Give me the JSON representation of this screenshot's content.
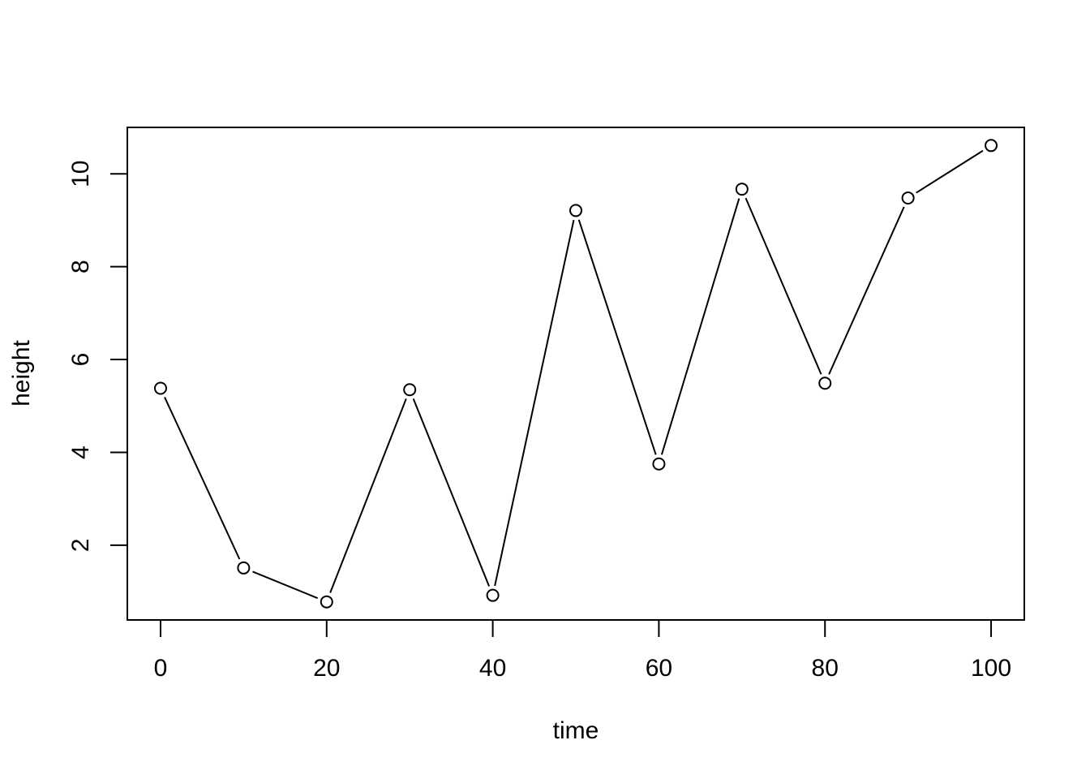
{
  "chart_data": {
    "type": "line",
    "title": "",
    "xlabel": "time",
    "ylabel": "height",
    "x": [
      0,
      10,
      20,
      30,
      40,
      50,
      60,
      70,
      80,
      90,
      100
    ],
    "series": [
      {
        "values": [
          5.38,
          1.51,
          0.78,
          5.35,
          0.92,
          9.21,
          3.75,
          9.67,
          5.49,
          9.48,
          10.61
        ]
      }
    ],
    "xlim": [
      -4,
      104
    ],
    "ylim": [
      0.39,
      11.0
    ],
    "xticks": [
      0,
      20,
      40,
      60,
      80,
      100
    ],
    "xtick_labels": [
      "0",
      "20",
      "40",
      "60",
      "80",
      "100"
    ],
    "yticks": [
      2,
      4,
      6,
      8,
      10
    ],
    "ytick_labels": [
      "2",
      "4",
      "6",
      "8",
      "10"
    ],
    "grid": false,
    "marker": "open-circle",
    "line_style": "overplotted-gaps",
    "colors": {
      "line": "#000000",
      "marker_fill": "#ffffff",
      "frame": "#000000"
    }
  }
}
